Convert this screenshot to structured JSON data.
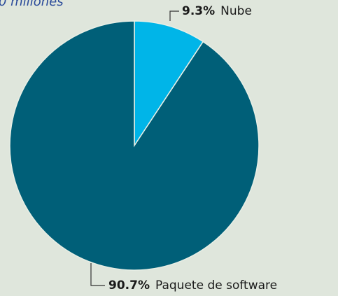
{
  "chart_data": {
    "type": "pie",
    "title": "0 millones",
    "categories": [
      "Nube",
      "Paquete de software"
    ],
    "values": [
      9.3,
      90.7
    ],
    "value_labels": [
      "9.3%",
      "90.7%"
    ],
    "colors": [
      "#00b5e8",
      "#005f78"
    ]
  }
}
